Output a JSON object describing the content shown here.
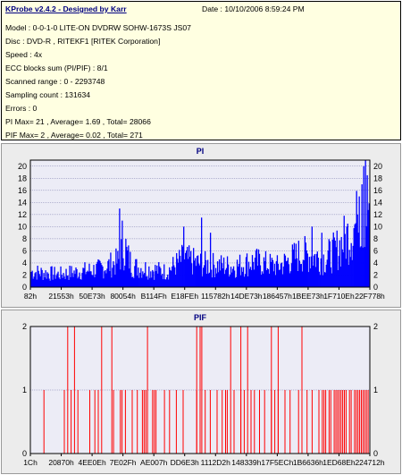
{
  "header": {
    "app_title": "KProbe v2.4.2 - Designed by Karr",
    "date": "Date : 10/10/2006 8:59:24 PM",
    "lines": [
      "Model : 0-0-1-0 LITE-ON DVDRW SOHW-1673S JS07",
      "Disc : DVD-R , RITEKF1 [RITEK Corporation]",
      "Speed : 4x",
      "ECC blocks sum (PI/PIF) : 8/1",
      "Scanned range : 0 - 2293748",
      "Sampling count : 131634",
      "Errors : 0",
      "PI Max= 21 , Average= 1.69 , Total= 28066",
      "PIF Max= 2 , Average= 0.02 , Total= 271"
    ]
  },
  "colors": {
    "pi_bar": "#0000ff",
    "pif_bar": "#ff0000",
    "plot_bg": "#ececf6",
    "grid": "#7777aa",
    "panel_bg": "#ececec",
    "info_bg": "#ffffe1"
  },
  "chart_data": [
    {
      "type": "bar",
      "title": "PI",
      "ylim": [
        0,
        21
      ],
      "y_ticks": [
        "0",
        "2",
        "4",
        "6",
        "8",
        "10",
        "12",
        "14",
        "16",
        "18",
        "20"
      ],
      "x_tick_labels": [
        "82h",
        "21553h",
        "50E73h",
        "80054h",
        "B114Fh",
        "E18FEh",
        "115782h",
        "14DE73h",
        "186457h",
        "1BEE73h",
        "1F710Eh",
        "22F778h"
      ],
      "x_range": [
        0,
        2293748
      ],
      "grid": true,
      "profile": [
        [
          0,
          3
        ],
        [
          0.08,
          2.5
        ],
        [
          0.2,
          3.5
        ],
        [
          0.26,
          5
        ],
        [
          0.27,
          8
        ],
        [
          0.3,
          4
        ],
        [
          0.4,
          3
        ],
        [
          0.45,
          5.5
        ],
        [
          0.5,
          4.5
        ],
        [
          0.6,
          4
        ],
        [
          0.66,
          5
        ],
        [
          0.73,
          4
        ],
        [
          0.8,
          6.5
        ],
        [
          0.87,
          5.5
        ],
        [
          0.9,
          7
        ],
        [
          0.95,
          11
        ],
        [
          0.98,
          14
        ],
        [
          1,
          16
        ]
      ],
      "spikes": [
        [
          0.26,
          13
        ],
        [
          0.27,
          11
        ],
        [
          0.28,
          8
        ],
        [
          0.45,
          10
        ],
        [
          0.505,
          11.5
        ],
        [
          0.53,
          9
        ],
        [
          0.83,
          10
        ],
        [
          0.86,
          9
        ],
        [
          0.965,
          12
        ],
        [
          0.97,
          15
        ],
        [
          0.98,
          17
        ],
        [
          0.983,
          20
        ],
        [
          0.99,
          21
        ],
        [
          0.995,
          18.5
        ]
      ]
    },
    {
      "type": "bar",
      "title": "PIF",
      "ylim": [
        0,
        2
      ],
      "y_ticks": [
        "0",
        "1",
        "2"
      ],
      "x_tick_labels": [
        "1Ch",
        "20870h",
        "4EE0Eh",
        "7E02Fh",
        "AE007h",
        "DD6E3h",
        "1112D2h",
        "148339h",
        "17F5ECh",
        "1B6636h",
        "1ED68Eh",
        "224712h"
      ],
      "x_range": [
        0,
        2293748
      ],
      "grid": true,
      "ones": [
        0.04,
        0.1,
        0.12,
        0.14,
        0.175,
        0.19,
        0.2,
        0.245,
        0.265,
        0.27,
        0.28,
        0.3,
        0.315,
        0.33,
        0.335,
        0.34,
        0.36,
        0.365,
        0.37,
        0.395,
        0.41,
        0.43,
        0.45,
        0.49,
        0.5,
        0.515,
        0.53,
        0.55,
        0.565,
        0.575,
        0.58,
        0.6,
        0.62,
        0.63,
        0.65,
        0.66,
        0.675,
        0.69,
        0.71,
        0.72,
        0.73,
        0.75,
        0.765,
        0.79,
        0.8,
        0.815,
        0.83,
        0.85,
        0.86,
        0.865,
        0.87,
        0.88,
        0.885,
        0.895,
        0.9,
        0.905,
        0.91,
        0.915,
        0.92,
        0.925,
        0.93,
        0.94,
        0.945,
        0.955,
        0.96,
        0.965,
        0.97,
        0.975,
        0.98,
        0.985,
        0.99,
        0.995
      ],
      "twos": [
        0.11,
        0.13,
        0.21,
        0.24,
        0.345,
        0.49,
        0.5,
        0.505,
        0.59,
        0.62,
        0.64,
        0.71,
        0.73,
        0.8
      ]
    }
  ]
}
